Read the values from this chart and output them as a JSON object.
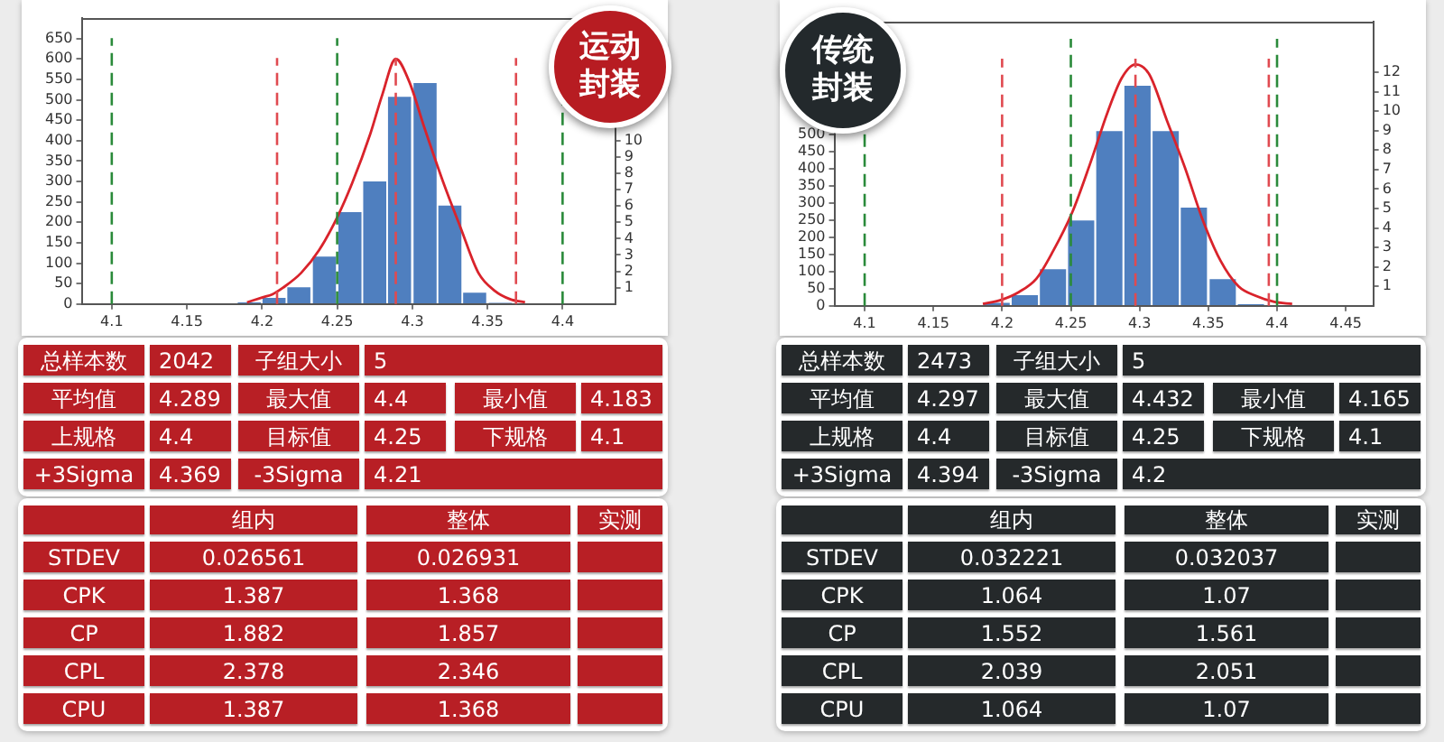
{
  "chart_data": [
    {
      "type": "histogram",
      "title": "运动封装",
      "bins": [
        4.183,
        4.2,
        4.216,
        4.233,
        4.25,
        4.267,
        4.283,
        4.3,
        4.317,
        4.333,
        4.35,
        4.367
      ],
      "values": [
        4,
        15,
        41,
        116,
        225,
        300,
        507,
        541,
        241,
        28,
        3
      ],
      "color": "#4f7fbf",
      "series": [
        {
          "type": "line",
          "axis": "y2",
          "color": "#d9232b",
          "x": [
            4.19,
            4.2,
            4.207,
            4.214,
            4.226,
            4.238,
            4.25,
            4.26,
            4.272,
            4.28,
            4.289,
            4.298,
            4.308,
            4.32,
            4.332,
            4.344,
            4.355,
            4.365,
            4.375
          ],
          "values": [
            0.1,
            0.4,
            0.6,
            1,
            1.9,
            3.3,
            5.3,
            7.4,
            10.4,
            12.8,
            15,
            13.6,
            10.8,
            7.6,
            4.7,
            1.9,
            0.8,
            0.3,
            0.1
          ]
        }
      ],
      "xlim": [
        4.08,
        4.435
      ],
      "xticks": [
        4.1,
        4.15,
        4.2,
        4.25,
        4.3,
        4.35,
        4.4
      ],
      "ylim": [
        0,
        700
      ],
      "yticks": [
        0,
        50,
        100,
        150,
        200,
        250,
        300,
        350,
        400,
        450,
        500,
        550,
        600,
        650
      ],
      "y2lim": [
        0,
        17.5
      ],
      "y2ticks": [
        1,
        2,
        3,
        4,
        5,
        6,
        7,
        8,
        9,
        10
      ],
      "ref_lines": [
        {
          "axis": "x",
          "value": 4.1,
          "color": "#2a8a3a",
          "line_style": "dashed"
        },
        {
          "axis": "x",
          "value": 4.25,
          "color": "#2a8a3a",
          "line_style": "dashed"
        },
        {
          "axis": "x",
          "value": 4.4,
          "color": "#2a8a3a",
          "line_style": "dashed"
        },
        {
          "axis": "x",
          "value": 4.21,
          "color": "#e04a50",
          "line_style": "dashed"
        },
        {
          "axis": "x",
          "value": 4.289,
          "color": "#e04a50",
          "line_style": "dashed"
        },
        {
          "axis": "x",
          "value": 4.369,
          "color": "#e04a50",
          "line_style": "dashed"
        }
      ],
      "grid": false,
      "legend": false
    },
    {
      "type": "histogram",
      "title": "传统封装",
      "bins": [
        4.186,
        4.206,
        4.227,
        4.247,
        4.268,
        4.288,
        4.309,
        4.329,
        4.35,
        4.371,
        4.391
      ],
      "values": [
        9,
        31,
        107,
        249,
        510,
        643,
        510,
        287,
        78,
        5
      ],
      "color": "#4f7fbf",
      "series": [
        {
          "type": "line",
          "axis": "y2",
          "color": "#d9232b",
          "x": [
            4.186,
            4.199,
            4.212,
            4.225,
            4.237,
            4.251,
            4.264,
            4.277,
            4.287,
            4.297,
            4.307,
            4.32,
            4.333,
            4.346,
            4.359,
            4.372,
            4.385,
            4.398,
            4.411
          ],
          "values": [
            0.1,
            0.3,
            0.7,
            1.4,
            2.8,
            4.8,
            7.3,
            10,
            11.7,
            12.4,
            11.9,
            9.5,
            7.1,
            4.4,
            2.3,
            1,
            0.5,
            0.2,
            0.1
          ]
        }
      ],
      "xlim": [
        4.078,
        4.47
      ],
      "xticks": [
        4.1,
        4.15,
        4.2,
        4.25,
        4.3,
        4.35,
        4.4,
        4.45
      ],
      "ylim": [
        0,
        830
      ],
      "yticks": [
        0,
        50,
        100,
        150,
        200,
        250,
        300,
        350,
        400,
        450,
        500
      ],
      "y2lim": [
        0,
        14.6
      ],
      "y2ticks": [
        1,
        2,
        3,
        4,
        5,
        6,
        7,
        8,
        9,
        10,
        11,
        12
      ],
      "ref_lines": [
        {
          "axis": "x",
          "value": 4.1,
          "color": "#2a8a3a",
          "line_style": "dashed"
        },
        {
          "axis": "x",
          "value": 4.25,
          "color": "#2a8a3a",
          "line_style": "dashed"
        },
        {
          "axis": "x",
          "value": 4.4,
          "color": "#2a8a3a",
          "line_style": "dashed"
        },
        {
          "axis": "x",
          "value": 4.2,
          "color": "#e04a50",
          "line_style": "dashed"
        },
        {
          "axis": "x",
          "value": 4.297,
          "color": "#e04a50",
          "line_style": "dashed"
        },
        {
          "axis": "x",
          "value": 4.394,
          "color": "#e04a50",
          "line_style": "dashed"
        }
      ],
      "grid": false,
      "legend": false
    },
    {
      "type": "other",
      "color": "#b81f25",
      "annotations": [
        "总样本数",
        "2042",
        "子组大小",
        "5",
        "平均值",
        "4.289",
        "最大值",
        "4.4",
        "最小值",
        "4.183",
        "上规格",
        "4.4",
        "目标值",
        "4.25",
        "下规格",
        "4.1",
        "+3Sigma",
        "4.369",
        "-3Sigma",
        "4.21"
      ]
    },
    {
      "type": "other",
      "color": "#25292b",
      "annotations": [
        "总样本数",
        "2473",
        "子组大小",
        "5",
        "平均值",
        "4.297",
        "最大值",
        "4.432",
        "最小值",
        "4.165",
        "上规格",
        "4.4",
        "目标值",
        "4.25",
        "下规格",
        "4.1",
        "+3Sigma",
        "4.394",
        "-3Sigma",
        "4.2"
      ]
    },
    {
      "type": "other",
      "color": "#b81f25",
      "annotations": [
        "组内",
        "整体",
        "实测",
        "STDEV",
        "0.026561",
        "0.026931",
        "CPK",
        "1.387",
        "1.368",
        "CP",
        "1.882",
        "1.857",
        "CPL",
        "2.378",
        "2.346",
        "CPU",
        "1.387",
        "1.368"
      ]
    },
    {
      "type": "other",
      "color": "#25292b",
      "annotations": [
        "组内",
        "整体",
        "实测",
        "STDEV",
        "0.032221",
        "0.032037",
        "CPK",
        "1.064",
        "1.07",
        "CP",
        "1.552",
        "1.561",
        "CPL",
        "2.039",
        "2.051",
        "CPU",
        "1.064",
        "1.07"
      ]
    }
  ]
}
